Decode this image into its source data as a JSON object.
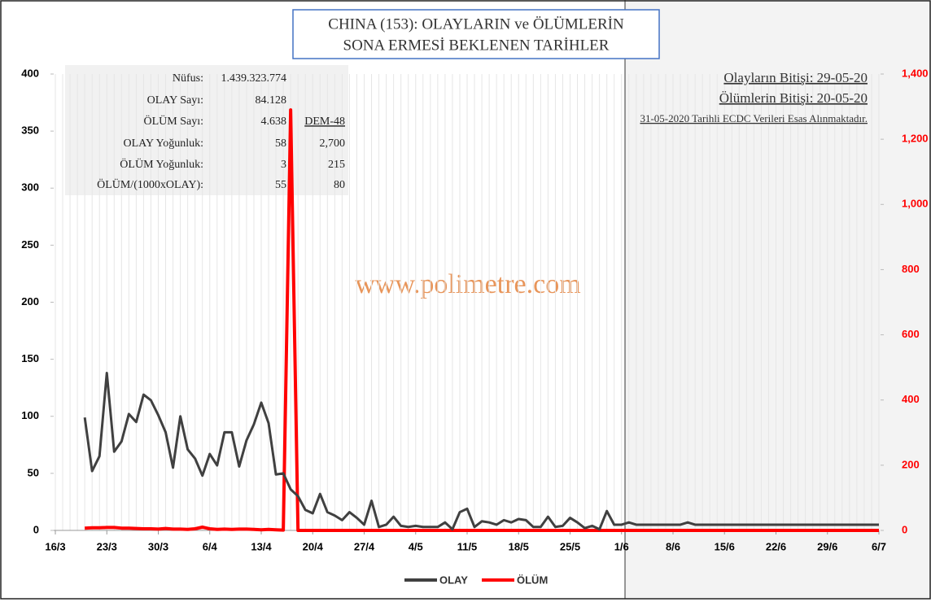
{
  "chart_data": {
    "type": "line",
    "title": [
      "CHINA (153): OLAYLARIN  ve ÖLÜMLERİN",
      "SONA ERMESİ  BEKLENEN  TARİHLER"
    ],
    "categories": [
      "16/3",
      null,
      null,
      null,
      null,
      null,
      null,
      "23/3",
      null,
      null,
      null,
      null,
      null,
      null,
      "30/3",
      null,
      null,
      null,
      null,
      null,
      null,
      "6/4",
      null,
      null,
      null,
      null,
      null,
      null,
      "13/4",
      null,
      null,
      null,
      null,
      null,
      null,
      "20/4",
      null,
      null,
      null,
      null,
      null,
      null,
      "27/4",
      null,
      null,
      null,
      null,
      null,
      null,
      "4/5",
      null,
      null,
      null,
      null,
      null,
      null,
      "11/5",
      null,
      null,
      null,
      null,
      null,
      null,
      "18/5",
      null,
      null,
      null,
      null,
      null,
      null,
      "25/5",
      null,
      null,
      null,
      null,
      null,
      null,
      "1/6",
      null,
      null,
      null,
      null,
      null,
      null,
      "8/6",
      null,
      null,
      null,
      null,
      null,
      null,
      "15/6",
      null,
      null,
      null,
      null,
      null,
      null,
      "22/6",
      null,
      null,
      null,
      null,
      null,
      null,
      "29/6",
      null,
      null,
      null,
      null,
      null,
      null,
      "6/7"
    ],
    "series": [
      {
        "name": "OLAY",
        "color": "#404040",
        "axis": "y",
        "values": [
          null,
          null,
          null,
          null,
          99,
          52,
          65,
          138,
          69,
          78,
          102,
          95,
          119,
          114,
          101,
          86,
          55,
          100,
          71,
          63,
          48,
          67,
          57,
          86,
          86,
          56,
          79,
          93,
          112,
          94,
          49,
          50,
          36,
          30,
          18,
          15,
          32,
          16,
          13,
          9,
          16,
          11,
          5,
          26,
          3,
          5,
          12,
          4,
          3,
          4,
          3,
          3,
          3,
          7,
          1,
          16,
          19,
          3,
          8,
          7,
          5,
          9,
          7,
          10,
          9,
          3,
          3,
          12,
          3,
          4,
          11,
          7,
          2,
          4,
          1,
          17,
          5,
          5,
          7,
          5,
          5,
          5,
          5,
          5,
          5,
          5,
          7,
          5,
          5,
          5,
          5,
          5,
          5,
          5,
          5,
          5,
          5,
          5,
          5,
          5,
          5,
          5,
          5,
          5,
          5,
          5,
          5,
          5,
          5,
          5,
          5,
          5,
          5
        ]
      },
      {
        "name": "ÖLÜM",
        "color": "#ff0000",
        "axis": "y2",
        "values": [
          null,
          null,
          null,
          null,
          7,
          8,
          8,
          9,
          9,
          7,
          7,
          6,
          5,
          5,
          4,
          6,
          4,
          4,
          3,
          5,
          10,
          5,
          3,
          4,
          3,
          4,
          4,
          3,
          2,
          3,
          2,
          1,
          1290,
          0,
          0,
          0,
          0,
          0,
          0,
          0,
          0,
          0,
          0,
          0,
          0,
          0,
          0,
          0,
          0,
          0,
          0,
          0,
          0,
          0,
          0,
          0,
          0,
          0,
          0,
          0,
          0,
          0,
          0,
          0,
          0,
          0,
          0,
          0,
          0,
          0,
          0,
          0,
          0,
          0,
          0,
          0,
          0,
          0,
          0,
          0,
          0,
          0,
          0,
          0,
          0,
          0,
          0,
          0,
          0,
          0,
          0,
          0,
          0,
          0,
          0,
          0,
          0,
          0,
          0,
          0,
          0,
          0,
          0,
          0,
          0,
          0,
          0,
          0,
          0,
          0,
          0,
          0,
          0
        ]
      }
    ],
    "ylim": [
      0,
      400
    ],
    "yticks": [
      0,
      50,
      100,
      150,
      200,
      250,
      300,
      350,
      400
    ],
    "y2lim": [
      0,
      1400
    ],
    "y2ticks": [
      0,
      200,
      400,
      600,
      800,
      {
        "value": 1000,
        "label": "1,000"
      },
      {
        "value": 1200,
        "label": "1,200"
      },
      {
        "value": 1400,
        "label": "1,400"
      }
    ],
    "grid": false,
    "legend": "bottom",
    "info_table": [
      [
        "Nüfus:",
        "1.439.323.774",
        null
      ],
      [
        "OLAY Sayı:",
        "84.128",
        null
      ],
      [
        "ÖLÜM Sayı:",
        "4.638",
        "DEM-48"
      ],
      [
        "OLAY Yoğunluk:",
        "58",
        "2,700"
      ],
      [
        "ÖLÜM Yoğunluk:",
        "3",
        "215"
      ],
      [
        "ÖLÜM/(1000xOLAY):",
        "55",
        "80"
      ]
    ],
    "notes": [
      "Olayların Bitişi: 29-05-20",
      "Ölümlerin Bitişi: 20-05-20",
      "31-05-2020 Tarihli ECDC Verileri Esas Alınmaktadır."
    ],
    "watermark": "www.polimetre.com"
  }
}
